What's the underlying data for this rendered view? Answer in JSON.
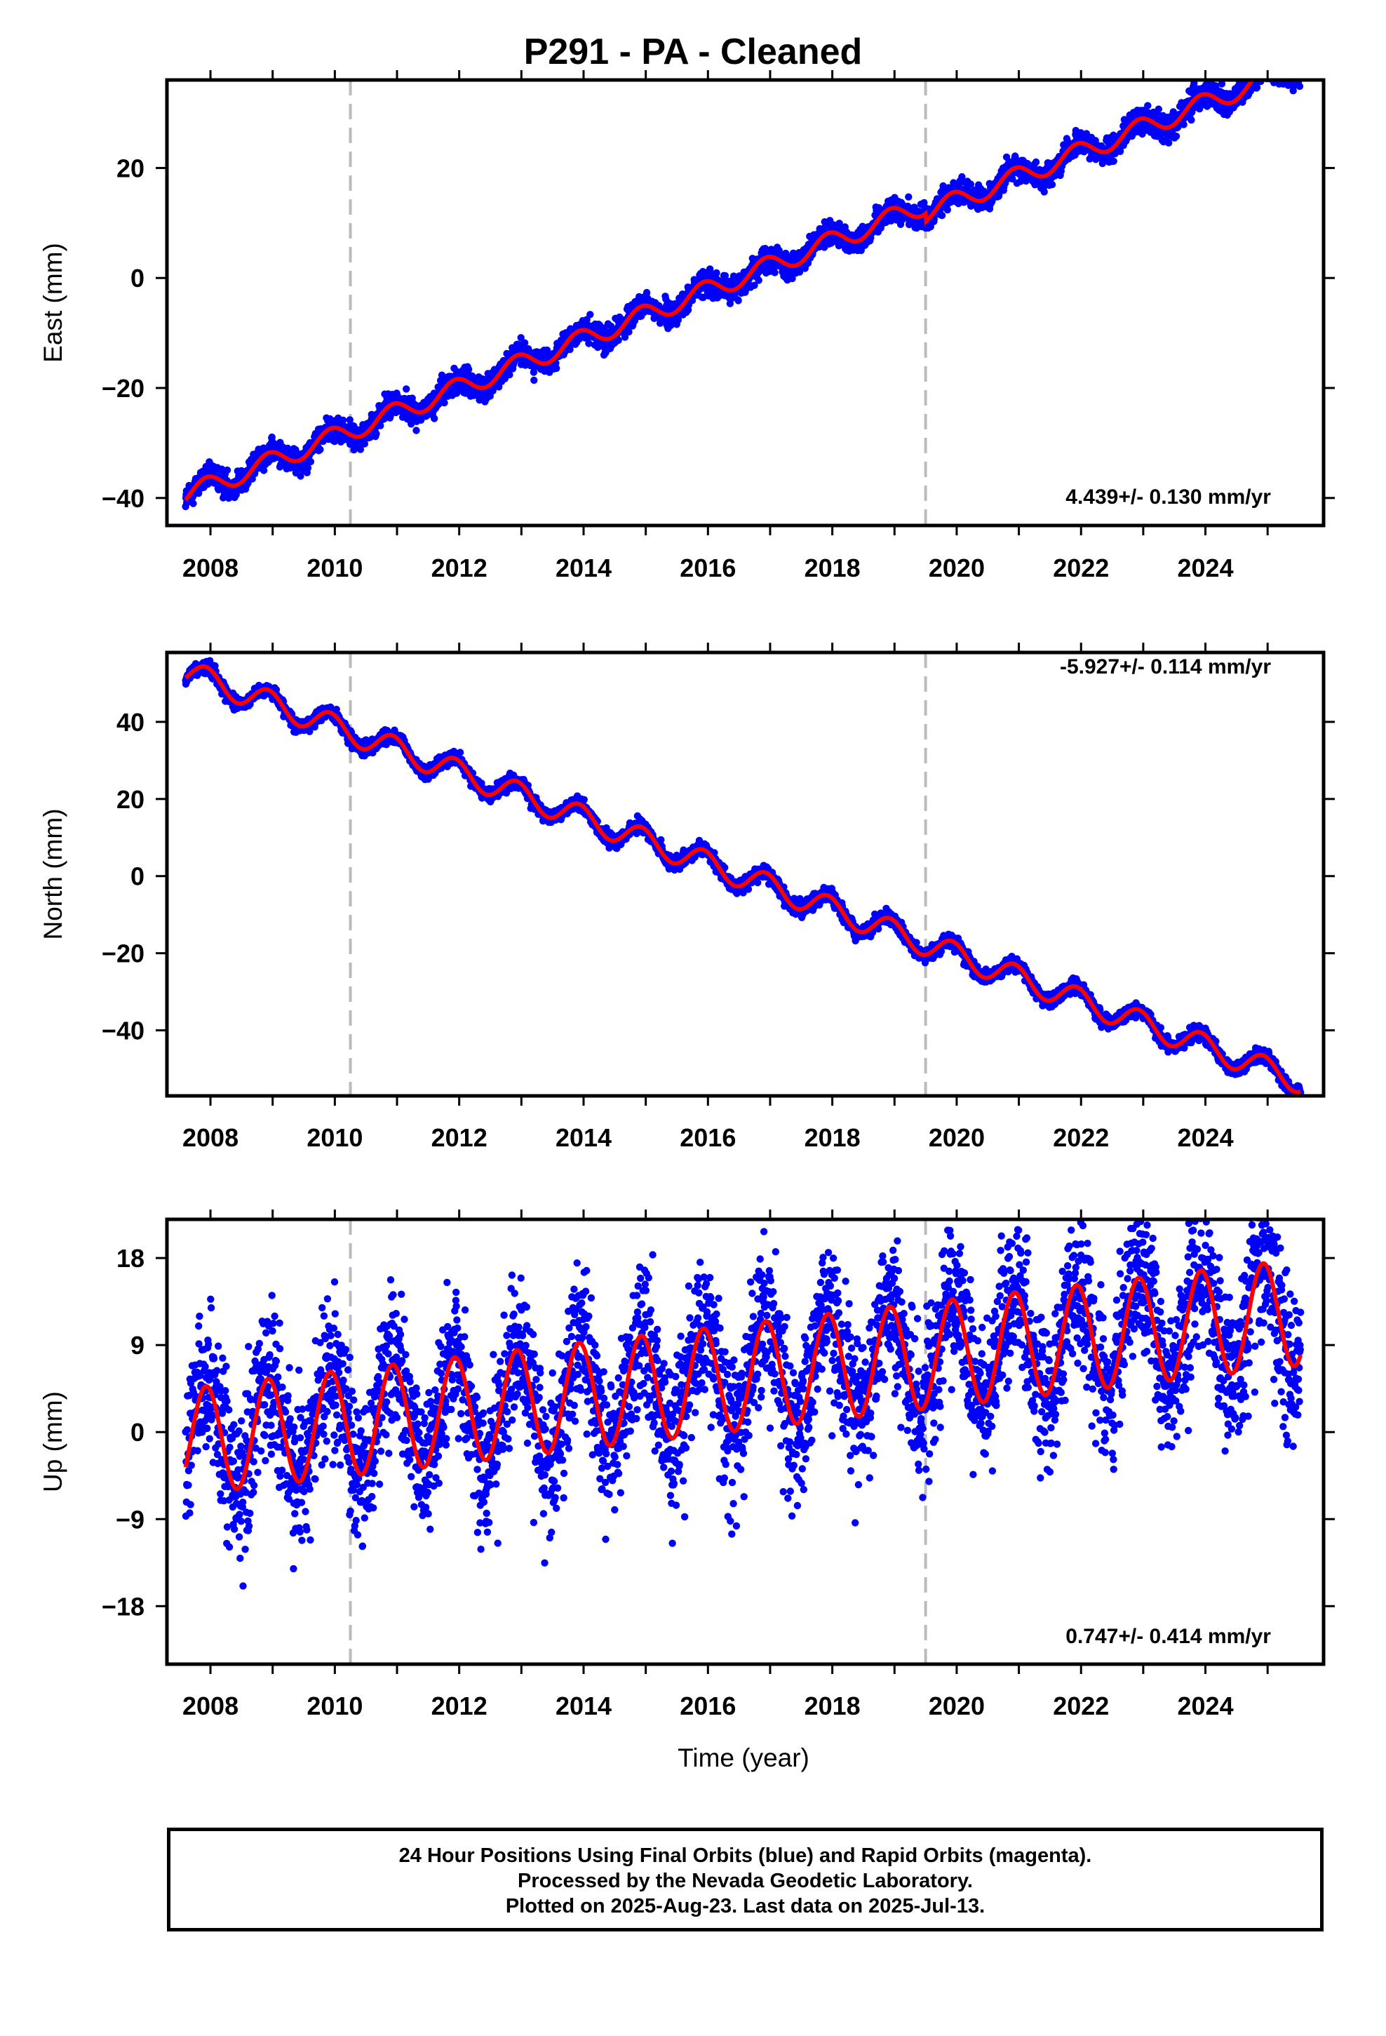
{
  "title": "P291  - PA - Cleaned",
  "xlabel": "Time (year)",
  "footer": {
    "line1": "24 Hour Positions Using Final Orbits (blue) and Rapid Orbits (magenta).",
    "line2": "Processed by the Nevada Geodetic Laboratory.",
    "line3": "Plotted on 2025-Aug-23. Last data on 2025-Jul-13."
  },
  "colors": {
    "data_points": "#0000ff",
    "model_fit": "#ff0000",
    "event_lines": "#bbbbbb",
    "frame": "#000000"
  },
  "chart_data": [
    {
      "type": "scatter",
      "panel": "east",
      "ylabel": "East (mm)",
      "rate_label": "4.439+/- 0.130 mm/yr",
      "rate_position": "bottom-right",
      "xlim": [
        2007.3,
        2025.9
      ],
      "ylim": [
        -45,
        36
      ],
      "x_ticks": [
        "2008",
        "2010",
        "2012",
        "2014",
        "2016",
        "2018",
        "2020",
        "2022",
        "2024"
      ],
      "y_ticks": [
        20,
        0,
        -20,
        -40
      ],
      "event_lines_x": [
        2010.25,
        2019.5
      ],
      "data_start": 2007.6,
      "data_end": 2025.53,
      "model": {
        "intercept_at_2007_6": -39.5,
        "rate_mm_per_yr": 4.439,
        "annual_amplitude": 1.8,
        "scatter_mm": 1.1,
        "offset_at_2019_5": -1.5
      },
      "series": [
        {
          "name": "Final Orbits (blue)",
          "kind": "points"
        },
        {
          "name": "model",
          "kind": "line"
        }
      ]
    },
    {
      "type": "scatter",
      "panel": "north",
      "ylabel": "North (mm)",
      "rate_label": "-5.927+/- 0.114 mm/yr",
      "rate_position": "top-right",
      "xlim": [
        2007.3,
        2025.9
      ],
      "ylim": [
        -57,
        58
      ],
      "x_ticks": [
        "2008",
        "2010",
        "2012",
        "2014",
        "2016",
        "2018",
        "2020",
        "2022",
        "2024"
      ],
      "y_ticks": [
        40,
        20,
        0,
        -20,
        -40
      ],
      "event_lines_x": [
        2010.25,
        2019.5
      ],
      "data_start": 2007.6,
      "data_end": 2025.53,
      "model": {
        "intercept_at_2007_6": 53.0,
        "rate_mm_per_yr": -5.927,
        "annual_amplitude": 3.2,
        "scatter_mm": 0.9,
        "offset_at_2019_5": 0
      },
      "series": [
        {
          "name": "Final Orbits (blue)",
          "kind": "points"
        },
        {
          "name": "model",
          "kind": "line"
        }
      ]
    },
    {
      "type": "scatter",
      "panel": "up",
      "ylabel": "Up (mm)",
      "rate_label": "0.747+/- 0.414 mm/yr",
      "rate_position": "bottom-right",
      "xlim": [
        2007.3,
        2025.9
      ],
      "ylim": [
        -24,
        22
      ],
      "x_ticks": [
        "2008",
        "2010",
        "2012",
        "2014",
        "2016",
        "2018",
        "2020",
        "2022",
        "2024"
      ],
      "y_ticks": [
        18,
        9,
        0,
        -9,
        -18
      ],
      "event_lines_x": [
        2010.25,
        2019.5
      ],
      "data_start": 2007.6,
      "data_end": 2025.53,
      "model": {
        "intercept_at_2007_6": -1.0,
        "rate_mm_per_yr": 0.747,
        "annual_amplitude": 5.5,
        "scatter_mm": 3.8,
        "offset_at_2019_5": 0
      },
      "series": [
        {
          "name": "Final Orbits (blue)",
          "kind": "points"
        },
        {
          "name": "model",
          "kind": "line"
        }
      ]
    }
  ]
}
